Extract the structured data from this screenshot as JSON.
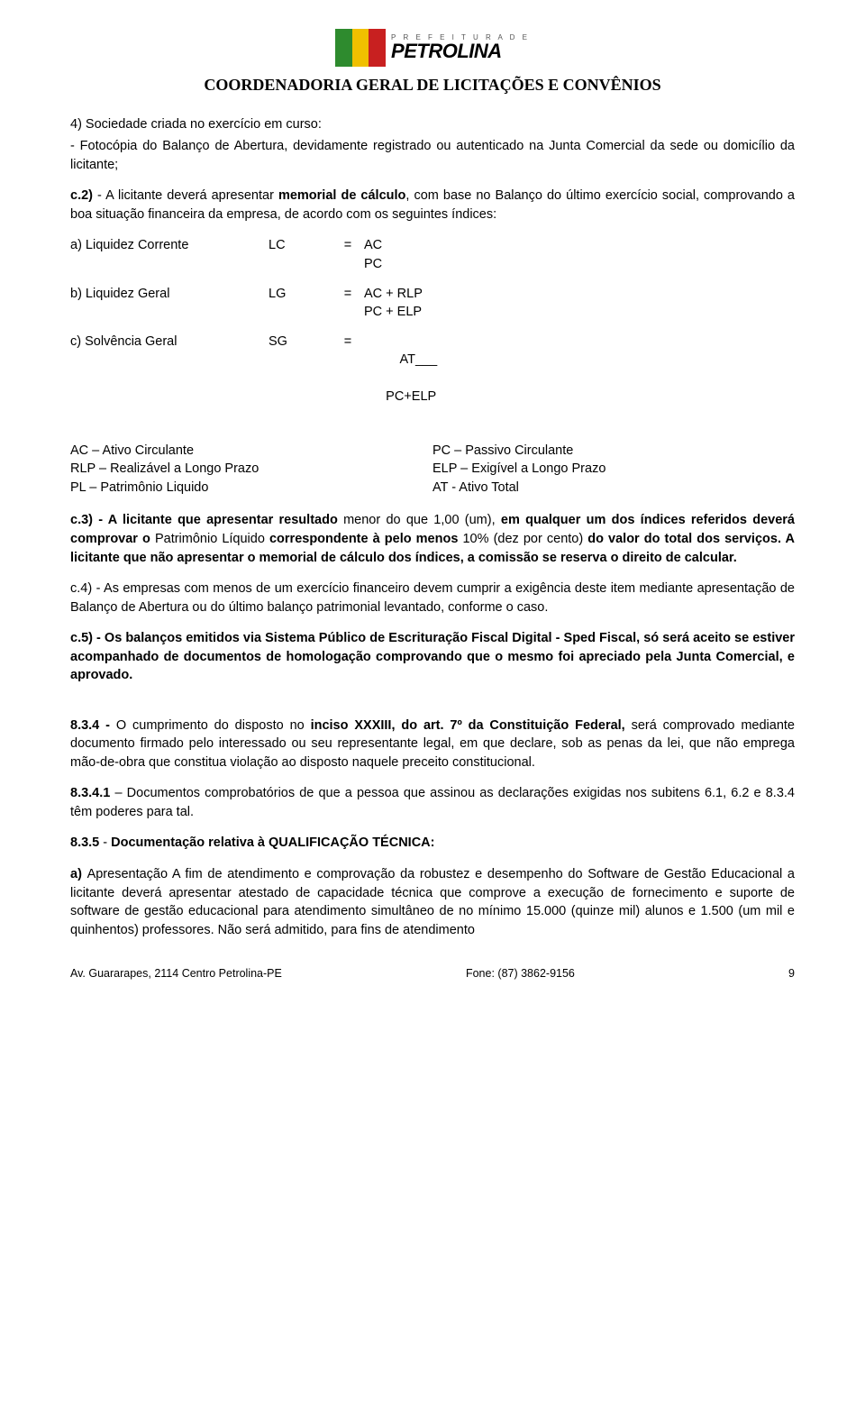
{
  "header": {
    "wm_top": "P R E F E I T U R A   D E",
    "wm_main": "PETROLINA",
    "dept": "COORDENADORIA GERAL DE LICITAÇÕES E CONVÊNIOS"
  },
  "p_4_intro": "4) Sociedade criada no exercício em curso:",
  "p_4_body": "- Fotocópia do Balanço de Abertura, devidamente registrado ou autenticado na Junta Comercial da sede ou domicílio da licitante;",
  "p_c2": "c.2) - A licitante deverá apresentar memorial de cálculo, com base no Balanço do último exercício social, comprovando a boa situação financeira da empresa, de acordo com os seguintes índices:",
  "formulas": {
    "a": {
      "label": "a) Liquidez Corrente",
      "var": "LC",
      "eq": "=",
      "val1": "AC",
      "val2": "PC"
    },
    "b": {
      "label": "b) Liquidez Geral",
      "var": "LG",
      "eq": "=",
      "val1": "AC + RLP",
      "val2": "PC + ELP"
    },
    "c": {
      "label": "c) Solvência Geral",
      "var": "SG",
      "eq": "=",
      "val1": "    AT___",
      "val2": "PC+ELP"
    }
  },
  "legend": {
    "l1a": "AC –  Ativo Circulante",
    "l1b": "PC – Passivo Circulante",
    "l2a": "RLP – Realizável a Longo Prazo",
    "l2b": "ELP – Exigível a Longo Prazo",
    "l3a": "PL –  Patrimônio Liquido",
    "l3b": "AT -  Ativo Total"
  },
  "p_c3_a": "c.3) - A licitante que apresentar resultado ",
  "p_c3_b": "menor do que 1,00 (um), ",
  "p_c3_c": "em qualquer um dos índices referidos deverá comprovar o ",
  "p_c3_d": "Patrimônio Líquido ",
  "p_c3_e": "correspondente à pelo menos ",
  "p_c3_f": "10% (dez por cento) ",
  "p_c3_g": "do valor do total dos serviços. A licitante que não apresentar o memorial de cálculo dos índices, a comissão se reserva o direito de calcular.",
  "p_c4": "c.4) - As empresas com menos de um exercício financeiro devem cumprir a exigência deste item mediante apresentação de Balanço de Abertura ou do último balanço patrimonial levantado, conforme o caso.",
  "p_c5": "c.5) - Os balanços emitidos via Sistema Público de Escrituração Fiscal Digital - Sped Fiscal, só será aceito se estiver acompanhado de documentos de homologação comprovando que o mesmo foi apreciado pela Junta Comercial, e aprovado.",
  "p_834_a": "8.3.4 - ",
  "p_834_b": "O cumprimento do disposto no ",
  "p_834_c": "inciso XXXIII, do art. 7º da Constituição Federal, ",
  "p_834_d": "será comprovado mediante documento firmado pelo interessado ou seu representante legal, em que declare, sob as penas da lei, que não emprega mão-de-obra que constitua violação ao disposto naquele preceito constitucional.",
  "p_8341_a": "8.3.4.1 ",
  "p_8341_b": "– Documentos comprobatórios de que a pessoa que assinou as declarações exigidas nos subitens 6.1, 6.2 e 8.3.4 têm poderes para tal.",
  "p_835_a": "8.3.5 ",
  "p_835_b": "- ",
  "p_835_c": "Documentação relativa à QUALIFICAÇÃO TÉCNICA:",
  "p_a_a": "a) ",
  "p_a_b": "Apresentação A fim de atendimento e comprovação da robustez e desempenho do Software de Gestão Educacional a licitante deverá apresentar atestado de capacidade técnica que comprove a execução de fornecimento e suporte de software de gestão educacional para atendimento simultâneo de no mínimo 15.000 (quinze mil) alunos e 1.500 (um mil e quinhentos) professores. Não será admitido, para fins de atendimento",
  "footer": {
    "addr": "Av. Guararapes, 2114 Centro Petrolina-PE",
    "phone": "Fone: (87) 3862-9156",
    "page": "9"
  },
  "colors": {
    "green": "#2e8b2e",
    "yellow": "#f0c000",
    "red": "#c82020"
  }
}
